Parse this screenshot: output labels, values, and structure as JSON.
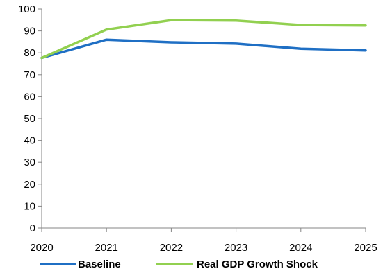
{
  "chart_data": {
    "type": "line",
    "x": [
      2020,
      2021,
      2022,
      2023,
      2024,
      2025
    ],
    "xticks": [
      "2020",
      "2021",
      "2022",
      "2023",
      "2024",
      "2025"
    ],
    "yticks": [
      "0",
      "10",
      "20",
      "30",
      "40",
      "50",
      "60",
      "70",
      "80",
      "90",
      "100"
    ],
    "ylim": [
      0,
      100
    ],
    "xlim": [
      2020,
      2025
    ],
    "grid": false,
    "legend_position": "bottom",
    "series": [
      {
        "name": "Baseline",
        "color": "#1f6fc4",
        "values": [
          77.7,
          86.0,
          84.8,
          84.2,
          81.9,
          81.1
        ]
      },
      {
        "name": "Real GDP Growth Shock",
        "color": "#92d050",
        "values": [
          77.7,
          90.6,
          94.9,
          94.7,
          92.7,
          92.5
        ]
      }
    ]
  }
}
